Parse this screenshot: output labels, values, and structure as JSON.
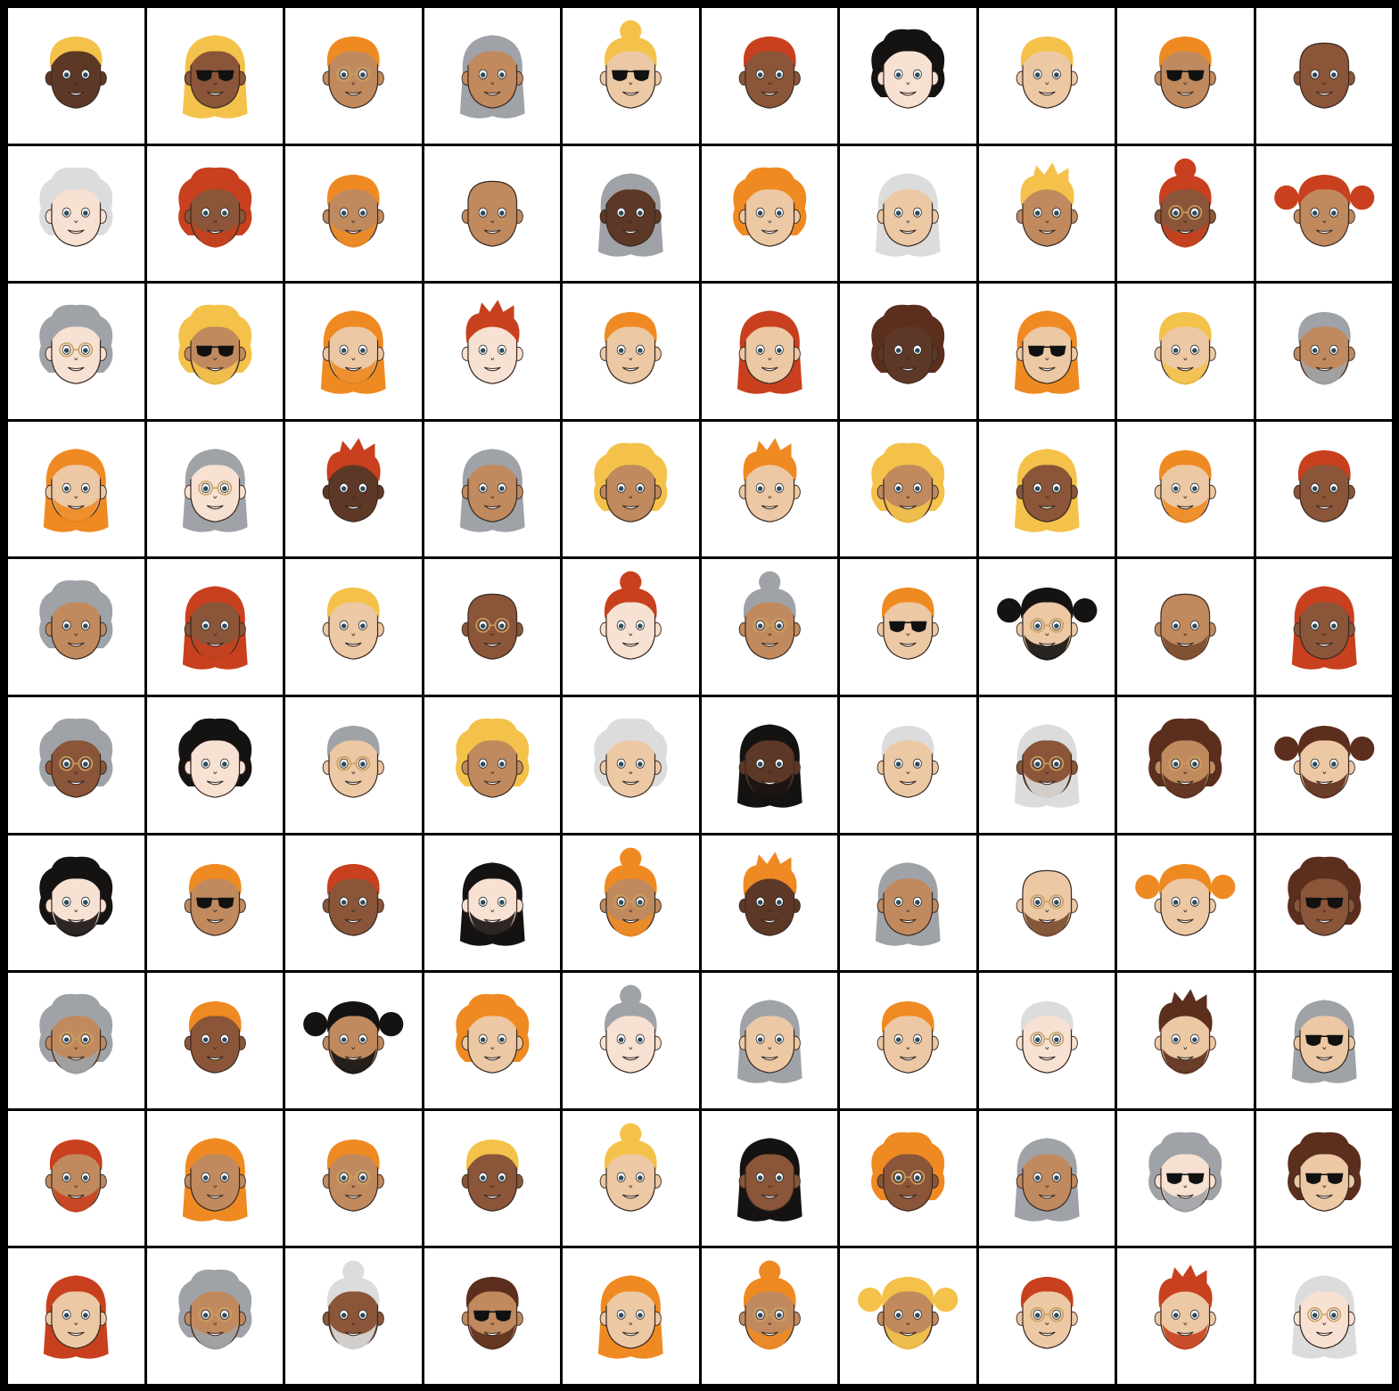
{
  "grid": {
    "rows": 10,
    "cols": 10
  },
  "palette": {
    "skin": {
      "dark": "#5e3826",
      "brown": "#8a5538",
      "tan": "#c08a5e",
      "light": "#ecc8a4",
      "pale": "#f7e1d2"
    },
    "hair": {
      "black": "#151212",
      "brown": "#5c2e1d",
      "red": "#c8401e",
      "orange": "#ef8a22",
      "blonde": "#f4c24a",
      "gray": "#9fa3a8",
      "white": "#dcdcdc",
      "none": "none"
    }
  },
  "avatars": [
    {
      "skin": "dark",
      "hair": "blonde",
      "style": "short",
      "glasses": "none",
      "beard": false
    },
    {
      "skin": "brown",
      "hair": "blonde",
      "style": "long",
      "glasses": "sun",
      "beard": false
    },
    {
      "skin": "tan",
      "hair": "orange",
      "style": "short",
      "glasses": "clear",
      "beard": false
    },
    {
      "skin": "tan",
      "hair": "gray",
      "style": "long",
      "glasses": "none",
      "beard": false
    },
    {
      "skin": "light",
      "hair": "blonde",
      "style": "bun",
      "glasses": "sun",
      "beard": false
    },
    {
      "skin": "brown",
      "hair": "red",
      "style": "short",
      "glasses": "none",
      "beard": false
    },
    {
      "skin": "pale",
      "hair": "black",
      "style": "curly",
      "glasses": "none",
      "beard": false
    },
    {
      "skin": "light",
      "hair": "blonde",
      "style": "short",
      "glasses": "none",
      "beard": false
    },
    {
      "skin": "tan",
      "hair": "orange",
      "style": "short",
      "glasses": "sun",
      "beard": false
    },
    {
      "skin": "brown",
      "hair": "none",
      "style": "bald",
      "glasses": "none",
      "beard": false
    },
    {
      "skin": "pale",
      "hair": "white",
      "style": "curly",
      "glasses": "none",
      "beard": false
    },
    {
      "skin": "brown",
      "hair": "red",
      "style": "curly",
      "glasses": "none",
      "beard": true
    },
    {
      "skin": "tan",
      "hair": "orange",
      "style": "short",
      "glasses": "none",
      "beard": true
    },
    {
      "skin": "tan",
      "hair": "none",
      "style": "bald",
      "glasses": "none",
      "beard": false
    },
    {
      "skin": "dark",
      "hair": "gray",
      "style": "long",
      "glasses": "none",
      "beard": false
    },
    {
      "skin": "light",
      "hair": "orange",
      "style": "curly",
      "glasses": "none",
      "beard": false
    },
    {
      "skin": "light",
      "hair": "white",
      "style": "long",
      "glasses": "none",
      "beard": false
    },
    {
      "skin": "tan",
      "hair": "blonde",
      "style": "spiky",
      "glasses": "none",
      "beard": false
    },
    {
      "skin": "brown",
      "hair": "red",
      "style": "bun",
      "glasses": "clear",
      "beard": true
    },
    {
      "skin": "tan",
      "hair": "red",
      "style": "pigtails",
      "glasses": "none",
      "beard": false
    },
    {
      "skin": "pale",
      "hair": "gray",
      "style": "curly",
      "glasses": "clear",
      "beard": false
    },
    {
      "skin": "tan",
      "hair": "blonde",
      "style": "curly",
      "glasses": "sun",
      "beard": true
    },
    {
      "skin": "light",
      "hair": "orange",
      "style": "long",
      "glasses": "none",
      "beard": true
    },
    {
      "skin": "pale",
      "hair": "red",
      "style": "spiky",
      "glasses": "none",
      "beard": false
    },
    {
      "skin": "light",
      "hair": "orange",
      "style": "short",
      "glasses": "none",
      "beard": false
    },
    {
      "skin": "light",
      "hair": "red",
      "style": "long",
      "glasses": "none",
      "beard": false
    },
    {
      "skin": "dark",
      "hair": "brown",
      "style": "curly",
      "glasses": "none",
      "beard": false
    },
    {
      "skin": "light",
      "hair": "orange",
      "style": "long",
      "glasses": "sun",
      "beard": false
    },
    {
      "skin": "light",
      "hair": "blonde",
      "style": "short",
      "glasses": "none",
      "beard": true
    },
    {
      "skin": "tan",
      "hair": "gray",
      "style": "short",
      "glasses": "none",
      "beard": true
    },
    {
      "skin": "light",
      "hair": "orange",
      "style": "long",
      "glasses": "none",
      "beard": true
    },
    {
      "skin": "pale",
      "hair": "gray",
      "style": "long",
      "glasses": "clear",
      "beard": false
    },
    {
      "skin": "dark",
      "hair": "red",
      "style": "spiky",
      "glasses": "none",
      "beard": false
    },
    {
      "skin": "tan",
      "hair": "gray",
      "style": "long",
      "glasses": "none",
      "beard": false
    },
    {
      "skin": "tan",
      "hair": "blonde",
      "style": "curly",
      "glasses": "none",
      "beard": false
    },
    {
      "skin": "light",
      "hair": "orange",
      "style": "spiky",
      "glasses": "none",
      "beard": false
    },
    {
      "skin": "tan",
      "hair": "blonde",
      "style": "curly",
      "glasses": "none",
      "beard": true
    },
    {
      "skin": "brown",
      "hair": "blonde",
      "style": "long",
      "glasses": "none",
      "beard": false
    },
    {
      "skin": "light",
      "hair": "orange",
      "style": "short",
      "glasses": "none",
      "beard": true
    },
    {
      "skin": "brown",
      "hair": "red",
      "style": "short",
      "glasses": "none",
      "beard": false
    },
    {
      "skin": "tan",
      "hair": "gray",
      "style": "curly",
      "glasses": "none",
      "beard": false
    },
    {
      "skin": "brown",
      "hair": "red",
      "style": "long",
      "glasses": "none",
      "beard": true
    },
    {
      "skin": "light",
      "hair": "blonde",
      "style": "short",
      "glasses": "none",
      "beard": false
    },
    {
      "skin": "brown",
      "hair": "none",
      "style": "bald",
      "glasses": "clear",
      "beard": false
    },
    {
      "skin": "pale",
      "hair": "red",
      "style": "bun",
      "glasses": "none",
      "beard": false
    },
    {
      "skin": "tan",
      "hair": "gray",
      "style": "bun",
      "glasses": "clear",
      "beard": false
    },
    {
      "skin": "light",
      "hair": "orange",
      "style": "short",
      "glasses": "sun",
      "beard": false
    },
    {
      "skin": "light",
      "hair": "black",
      "style": "pigtails",
      "glasses": "clear",
      "beard": true
    },
    {
      "skin": "tan",
      "hair": "none",
      "style": "bald",
      "glasses": "none",
      "beard": true
    },
    {
      "skin": "brown",
      "hair": "red",
      "style": "long",
      "glasses": "none",
      "beard": false
    },
    {
      "skin": "brown",
      "hair": "gray",
      "style": "curly",
      "glasses": "clear",
      "beard": false
    },
    {
      "skin": "pale",
      "hair": "black",
      "style": "curly",
      "glasses": "none",
      "beard": false
    },
    {
      "skin": "light",
      "hair": "gray",
      "style": "short",
      "glasses": "clear",
      "beard": false
    },
    {
      "skin": "tan",
      "hair": "blonde",
      "style": "curly",
      "glasses": "none",
      "beard": false
    },
    {
      "skin": "light",
      "hair": "white",
      "style": "curly",
      "glasses": "none",
      "beard": false
    },
    {
      "skin": "dark",
      "hair": "black",
      "style": "long",
      "glasses": "none",
      "beard": true
    },
    {
      "skin": "light",
      "hair": "white",
      "style": "short",
      "glasses": "none",
      "beard": false
    },
    {
      "skin": "brown",
      "hair": "white",
      "style": "long",
      "glasses": "clear",
      "beard": true
    },
    {
      "skin": "tan",
      "hair": "brown",
      "style": "curly",
      "glasses": "clear",
      "beard": true
    },
    {
      "skin": "light",
      "hair": "brown",
      "style": "pigtails",
      "glasses": "none",
      "beard": true
    },
    {
      "skin": "pale",
      "hair": "black",
      "style": "curly",
      "glasses": "none",
      "beard": true
    },
    {
      "skin": "tan",
      "hair": "orange",
      "style": "short",
      "glasses": "sun",
      "beard": false
    },
    {
      "skin": "brown",
      "hair": "red",
      "style": "short",
      "glasses": "none",
      "beard": false
    },
    {
      "skin": "pale",
      "hair": "black",
      "style": "long",
      "glasses": "none",
      "beard": true
    },
    {
      "skin": "tan",
      "hair": "orange",
      "style": "bun",
      "glasses": "clear",
      "beard": true
    },
    {
      "skin": "dark",
      "hair": "orange",
      "style": "spiky",
      "glasses": "none",
      "beard": false
    },
    {
      "skin": "tan",
      "hair": "gray",
      "style": "long",
      "glasses": "none",
      "beard": false
    },
    {
      "skin": "light",
      "hair": "red",
      "style": "bald",
      "glasses": "clear",
      "beard": true
    },
    {
      "skin": "light",
      "hair": "orange",
      "style": "pigtails",
      "glasses": "none",
      "beard": false
    },
    {
      "skin": "brown",
      "hair": "brown",
      "style": "curly",
      "glasses": "sun",
      "beard": false
    },
    {
      "skin": "tan",
      "hair": "gray",
      "style": "curly",
      "glasses": "clear",
      "beard": true
    },
    {
      "skin": "brown",
      "hair": "orange",
      "style": "short",
      "glasses": "none",
      "beard": false
    },
    {
      "skin": "tan",
      "hair": "black",
      "style": "pigtails",
      "glasses": "none",
      "beard": true
    },
    {
      "skin": "light",
      "hair": "orange",
      "style": "curly",
      "glasses": "none",
      "beard": false
    },
    {
      "skin": "pale",
      "hair": "gray",
      "style": "bun",
      "glasses": "none",
      "beard": false
    },
    {
      "skin": "light",
      "hair": "gray",
      "style": "long",
      "glasses": "none",
      "beard": false
    },
    {
      "skin": "light",
      "hair": "orange",
      "style": "short",
      "glasses": "none",
      "beard": false
    },
    {
      "skin": "pale",
      "hair": "white",
      "style": "short",
      "glasses": "clear",
      "beard": false
    },
    {
      "skin": "light",
      "hair": "brown",
      "style": "spiky",
      "glasses": "none",
      "beard": true
    },
    {
      "skin": "light",
      "hair": "gray",
      "style": "long",
      "glasses": "sun",
      "beard": false
    },
    {
      "skin": "tan",
      "hair": "red",
      "style": "short",
      "glasses": "none",
      "beard": true
    },
    {
      "skin": "tan",
      "hair": "orange",
      "style": "long",
      "glasses": "none",
      "beard": false
    },
    {
      "skin": "tan",
      "hair": "orange",
      "style": "short",
      "glasses": "clear",
      "beard": false
    },
    {
      "skin": "brown",
      "hair": "blonde",
      "style": "short",
      "glasses": "none",
      "beard": false
    },
    {
      "skin": "light",
      "hair": "blonde",
      "style": "bun",
      "glasses": "none",
      "beard": false
    },
    {
      "skin": "brown",
      "hair": "black",
      "style": "long",
      "glasses": "none",
      "beard": false
    },
    {
      "skin": "brown",
      "hair": "orange",
      "style": "curly",
      "glasses": "clear",
      "beard": false
    },
    {
      "skin": "tan",
      "hair": "gray",
      "style": "long",
      "glasses": "none",
      "beard": false
    },
    {
      "skin": "pale",
      "hair": "gray",
      "style": "curly",
      "glasses": "sun",
      "beard": true
    },
    {
      "skin": "light",
      "hair": "brown",
      "style": "curly",
      "glasses": "sun",
      "beard": false
    },
    {
      "skin": "light",
      "hair": "red",
      "style": "long",
      "glasses": "none",
      "beard": false
    },
    {
      "skin": "tan",
      "hair": "gray",
      "style": "curly",
      "glasses": "clear",
      "beard": true
    },
    {
      "skin": "brown",
      "hair": "white",
      "style": "bun",
      "glasses": "none",
      "beard": true
    },
    {
      "skin": "tan",
      "hair": "brown",
      "style": "short",
      "glasses": "sun",
      "beard": true
    },
    {
      "skin": "light",
      "hair": "orange",
      "style": "long",
      "glasses": "none",
      "beard": false
    },
    {
      "skin": "tan",
      "hair": "orange",
      "style": "bun",
      "glasses": "clear",
      "beard": true
    },
    {
      "skin": "tan",
      "hair": "blonde",
      "style": "pigtails",
      "glasses": "none",
      "beard": true
    },
    {
      "skin": "light",
      "hair": "red",
      "style": "short",
      "glasses": "clear",
      "beard": false
    },
    {
      "skin": "light",
      "hair": "red",
      "style": "spiky",
      "glasses": "none",
      "beard": true
    },
    {
      "skin": "pale",
      "hair": "white",
      "style": "long",
      "glasses": "clear",
      "beard": false
    }
  ]
}
